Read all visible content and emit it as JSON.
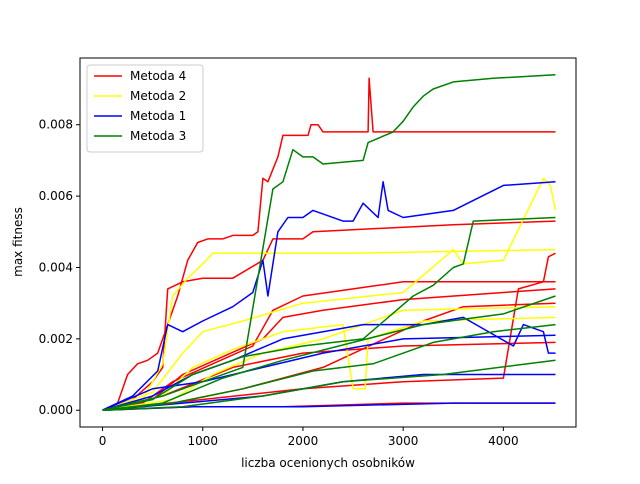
{
  "chart_data": {
    "type": "line",
    "title": "",
    "xlabel": "liczba ocenionych osobników",
    "ylabel": "max fitness",
    "xlim": [
      -225,
      4725
    ],
    "ylim": [
      -0.00047,
      0.00987
    ],
    "xticks": [
      0,
      1000,
      2000,
      3000,
      4000
    ],
    "xtick_labels": [
      "0",
      "1000",
      "2000",
      "3000",
      "4000"
    ],
    "yticks": [
      0.0,
      0.002,
      0.004,
      0.006,
      0.008
    ],
    "ytick_labels": [
      "0.000",
      "0.002",
      "0.004",
      "0.006",
      "0.008"
    ],
    "grid": false,
    "legend_position": "top-left",
    "legend": [
      {
        "name": "Metoda 4",
        "color": "#ff0000"
      },
      {
        "name": "Metoda 2",
        "color": "#ffff00"
      },
      {
        "name": "Metoda 1",
        "color": "#0000ff"
      },
      {
        "name": "Metoda 3",
        "color": "#008000"
      }
    ],
    "series": [
      {
        "method": 0,
        "points": [
          [
            0,
            0
          ],
          [
            150,
            0.0002
          ],
          [
            250,
            0.001
          ],
          [
            350,
            0.0013
          ],
          [
            450,
            0.0014
          ],
          [
            550,
            0.0016
          ],
          [
            650,
            0.0024
          ],
          [
            750,
            0.0032
          ],
          [
            850,
            0.0042
          ],
          [
            950,
            0.0047
          ],
          [
            1050,
            0.0048
          ],
          [
            1200,
            0.0048
          ],
          [
            1300,
            0.0049
          ],
          [
            1500,
            0.0049
          ],
          [
            1550,
            0.005
          ],
          [
            1600,
            0.0065
          ],
          [
            1650,
            0.0064
          ],
          [
            1750,
            0.0071
          ],
          [
            1800,
            0.0077
          ],
          [
            2050,
            0.0077
          ],
          [
            2080,
            0.008
          ],
          [
            2150,
            0.008
          ],
          [
            2200,
            0.0078
          ],
          [
            2650,
            0.0078
          ],
          [
            2660,
            0.0093
          ],
          [
            2700,
            0.0078
          ],
          [
            4520,
            0.0078
          ]
        ]
      },
      {
        "method": 0,
        "points": [
          [
            0,
            0
          ],
          [
            300,
            0.0003
          ],
          [
            500,
            0.0008
          ],
          [
            600,
            0.0012
          ],
          [
            650,
            0.0034
          ],
          [
            800,
            0.0036
          ],
          [
            1000,
            0.0037
          ],
          [
            1300,
            0.0037
          ],
          [
            1600,
            0.0042
          ],
          [
            1700,
            0.0048
          ],
          [
            2000,
            0.0048
          ],
          [
            2100,
            0.005
          ],
          [
            3500,
            0.0052
          ],
          [
            4520,
            0.0053
          ]
        ]
      },
      {
        "method": 0,
        "points": [
          [
            0,
            0
          ],
          [
            400,
            0.0002
          ],
          [
            700,
            0.0008
          ],
          [
            1100,
            0.0013
          ],
          [
            1500,
            0.0018
          ],
          [
            1700,
            0.0028
          ],
          [
            2000,
            0.0032
          ],
          [
            2500,
            0.0034
          ],
          [
            3000,
            0.0036
          ],
          [
            4520,
            0.0036
          ]
        ]
      },
      {
        "method": 0,
        "points": [
          [
            0,
            0
          ],
          [
            500,
            0.0003
          ],
          [
            800,
            0.001
          ],
          [
            1200,
            0.0015
          ],
          [
            1600,
            0.002
          ],
          [
            1800,
            0.0026
          ],
          [
            2200,
            0.0028
          ],
          [
            3000,
            0.0031
          ],
          [
            4000,
            0.0033
          ],
          [
            4520,
            0.0034
          ]
        ]
      },
      {
        "method": 0,
        "points": [
          [
            0,
            0
          ],
          [
            300,
            0.0001
          ],
          [
            1000,
            0.0003
          ],
          [
            2000,
            0.0006
          ],
          [
            3000,
            0.0008
          ],
          [
            4000,
            0.0009
          ],
          [
            4150,
            0.0034
          ],
          [
            4400,
            0.0036
          ],
          [
            4450,
            0.0043
          ],
          [
            4520,
            0.0044
          ]
        ]
      },
      {
        "method": 0,
        "points": [
          [
            0,
            0
          ],
          [
            600,
            0.0004
          ],
          [
            1300,
            0.0012
          ],
          [
            2000,
            0.0016
          ],
          [
            3000,
            0.0018
          ],
          [
            4520,
            0.0019
          ]
        ]
      },
      {
        "method": 0,
        "points": [
          [
            0,
            0
          ],
          [
            700,
            0.0002
          ],
          [
            1400,
            0.0006
          ],
          [
            2200,
            0.0012
          ],
          [
            3200,
            0.0025
          ],
          [
            3600,
            0.0029
          ],
          [
            4520,
            0.003
          ]
        ]
      },
      {
        "method": 0,
        "points": [
          [
            0,
            0
          ],
          [
            900,
            0.0001
          ],
          [
            1800,
            0.0001
          ],
          [
            3000,
            0.0002
          ],
          [
            4520,
            0.0002
          ]
        ]
      },
      {
        "method": 1,
        "points": [
          [
            0,
            0
          ],
          [
            400,
            0.0003
          ],
          [
            600,
            0.0013
          ],
          [
            700,
            0.0032
          ],
          [
            850,
            0.0037
          ],
          [
            1000,
            0.0041
          ],
          [
            1100,
            0.0044
          ],
          [
            2500,
            0.0044
          ],
          [
            4520,
            0.0045
          ]
        ]
      },
      {
        "method": 1,
        "points": [
          [
            0,
            0
          ],
          [
            500,
            0.0005
          ],
          [
            800,
            0.0016
          ],
          [
            1000,
            0.0022
          ],
          [
            1400,
            0.0025
          ],
          [
            2000,
            0.003
          ],
          [
            3000,
            0.0033
          ],
          [
            3500,
            0.0045
          ],
          [
            3600,
            0.0041
          ],
          [
            4000,
            0.0042
          ],
          [
            4400,
            0.0065
          ],
          [
            4470,
            0.0063
          ],
          [
            4520,
            0.0056
          ]
        ]
      },
      {
        "method": 1,
        "points": [
          [
            0,
            0
          ],
          [
            600,
            0.0004
          ],
          [
            900,
            0.0012
          ],
          [
            1300,
            0.0017
          ],
          [
            1800,
            0.0022
          ],
          [
            2400,
            0.0024
          ],
          [
            2500,
            0.0006
          ],
          [
            2620,
            0.0006
          ],
          [
            2650,
            0.002
          ],
          [
            3200,
            0.0025
          ],
          [
            4520,
            0.0026
          ]
        ]
      },
      {
        "method": 1,
        "points": [
          [
            0,
            0
          ],
          [
            700,
            0.0003
          ],
          [
            1100,
            0.001
          ],
          [
            1600,
            0.0016
          ],
          [
            2200,
            0.002
          ],
          [
            3000,
            0.0028
          ],
          [
            4520,
            0.0029
          ]
        ]
      },
      {
        "method": 2,
        "points": [
          [
            0,
            0
          ],
          [
            300,
            0.0004
          ],
          [
            550,
            0.0011
          ],
          [
            650,
            0.0024
          ],
          [
            800,
            0.0022
          ],
          [
            1000,
            0.0025
          ],
          [
            1300,
            0.0029
          ],
          [
            1500,
            0.0033
          ],
          [
            1600,
            0.0042
          ],
          [
            1650,
            0.0032
          ],
          [
            1750,
            0.005
          ],
          [
            1850,
            0.0054
          ],
          [
            2000,
            0.0054
          ],
          [
            2100,
            0.0056
          ],
          [
            2400,
            0.0053
          ],
          [
            2500,
            0.0053
          ],
          [
            2600,
            0.0058
          ],
          [
            2750,
            0.0054
          ],
          [
            2800,
            0.0064
          ],
          [
            2850,
            0.0056
          ],
          [
            3000,
            0.0054
          ],
          [
            3500,
            0.0056
          ],
          [
            4000,
            0.0063
          ],
          [
            4520,
            0.0064
          ]
        ]
      },
      {
        "method": 2,
        "points": [
          [
            0,
            0
          ],
          [
            500,
            0.0004
          ],
          [
            900,
            0.001
          ],
          [
            1300,
            0.0014
          ],
          [
            1800,
            0.002
          ],
          [
            2200,
            0.0022
          ],
          [
            2600,
            0.0024
          ],
          [
            3200,
            0.0024
          ],
          [
            3600,
            0.0026
          ],
          [
            4100,
            0.0018
          ],
          [
            4200,
            0.0024
          ],
          [
            4400,
            0.0022
          ],
          [
            4450,
            0.0016
          ],
          [
            4520,
            0.0016
          ]
        ]
      },
      {
        "method": 2,
        "points": [
          [
            0,
            0
          ],
          [
            500,
            0.0006
          ],
          [
            1000,
            0.0008
          ],
          [
            1600,
            0.0012
          ],
          [
            2200,
            0.0016
          ],
          [
            3000,
            0.002
          ],
          [
            4520,
            0.0021
          ]
        ]
      },
      {
        "method": 2,
        "points": [
          [
            0,
            0
          ],
          [
            800,
            0.0002
          ],
          [
            1600,
            0.0004
          ],
          [
            2400,
            0.0008
          ],
          [
            3200,
            0.001
          ],
          [
            4520,
            0.001
          ]
        ]
      },
      {
        "method": 2,
        "points": [
          [
            0,
            0
          ],
          [
            900,
            0.0001
          ],
          [
            2000,
            0.0001
          ],
          [
            3500,
            0.0002
          ],
          [
            4520,
            0.0002
          ]
        ]
      },
      {
        "method": 3,
        "points": [
          [
            0,
            0
          ],
          [
            600,
            0.0004
          ],
          [
            1000,
            0.0008
          ],
          [
            1400,
            0.0012
          ],
          [
            1700,
            0.0062
          ],
          [
            1800,
            0.0064
          ],
          [
            1900,
            0.0073
          ],
          [
            2000,
            0.0071
          ],
          [
            2100,
            0.0071
          ],
          [
            2200,
            0.0069
          ],
          [
            2600,
            0.007
          ],
          [
            2650,
            0.0075
          ],
          [
            2900,
            0.0078
          ],
          [
            3000,
            0.0081
          ],
          [
            3100,
            0.0085
          ],
          [
            3200,
            0.0088
          ],
          [
            3300,
            0.009
          ],
          [
            3500,
            0.0092
          ],
          [
            3900,
            0.0093
          ],
          [
            4520,
            0.0094
          ]
        ]
      },
      {
        "method": 3,
        "points": [
          [
            0,
            0
          ],
          [
            500,
            0.0003
          ],
          [
            900,
            0.001
          ],
          [
            1400,
            0.0015
          ],
          [
            2000,
            0.0018
          ],
          [
            2600,
            0.002
          ],
          [
            3100,
            0.0032
          ],
          [
            3300,
            0.0035
          ],
          [
            3500,
            0.004
          ],
          [
            3600,
            0.0041
          ],
          [
            3700,
            0.0053
          ],
          [
            4520,
            0.0054
          ]
        ]
      },
      {
        "method": 3,
        "points": [
          [
            0,
            0
          ],
          [
            600,
            0.0002
          ],
          [
            1200,
            0.0009
          ],
          [
            1800,
            0.0014
          ],
          [
            2500,
            0.0019
          ],
          [
            3200,
            0.0024
          ],
          [
            4000,
            0.0027
          ],
          [
            4520,
            0.0032
          ]
        ]
      },
      {
        "method": 3,
        "points": [
          [
            0,
            0
          ],
          [
            700,
            0.0002
          ],
          [
            1400,
            0.0006
          ],
          [
            2100,
            0.0011
          ],
          [
            2700,
            0.0013
          ],
          [
            3300,
            0.0019
          ],
          [
            3900,
            0.0022
          ],
          [
            4520,
            0.0024
          ]
        ]
      },
      {
        "method": 3,
        "points": [
          [
            0,
            0
          ],
          [
            800,
            0.0001
          ],
          [
            1600,
            0.0004
          ],
          [
            2400,
            0.0008
          ],
          [
            3400,
            0.001
          ],
          [
            4520,
            0.0014
          ]
        ]
      }
    ]
  }
}
